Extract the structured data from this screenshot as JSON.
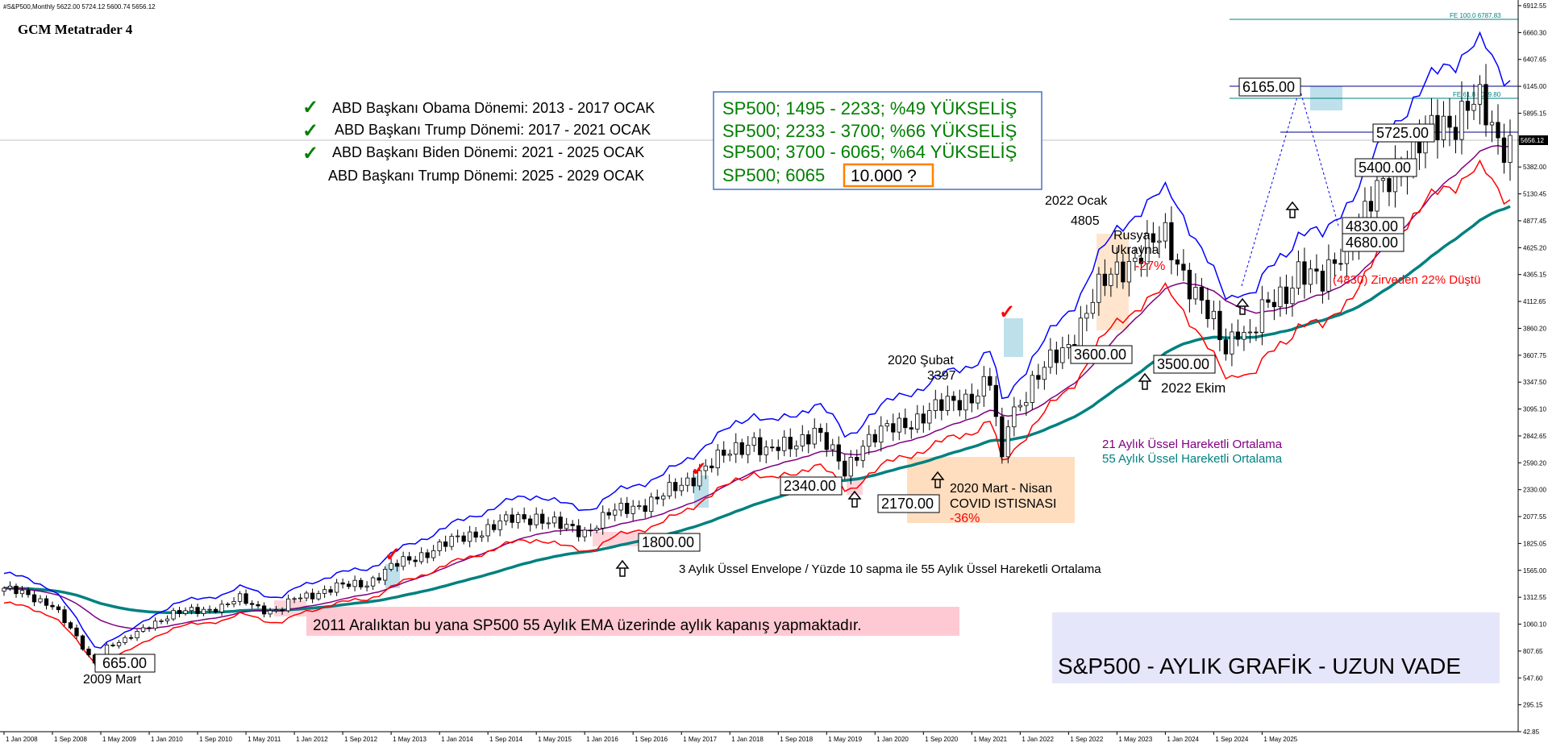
{
  "header": {
    "symbol_line": "#S&P500,Monthly  5622.00 5724.12 5600.74 5656.12",
    "watermark": "GCM Metatrader 4"
  },
  "chart_data": {
    "type": "candlestick",
    "title": "S&P500 - AYLIK GRAFİK - UZUN VADE",
    "timeframe": "Monthly",
    "ylim": [
      42.85,
      6912.55
    ],
    "y_ticks": [
      "6912.55",
      "6660.30",
      "6407.65",
      "6145.00",
      "5895.15",
      "5637.45",
      "5382.00",
      "5130.45",
      "4877.45",
      "4625.20",
      "4365.15",
      "4112.65",
      "3860.20",
      "3607.75",
      "3347.50",
      "3095.10",
      "2842.65",
      "2590.20",
      "2330.00",
      "2077.55",
      "1825.05",
      "1565.00",
      "1312.55",
      "1060.10",
      "807.65",
      "547.60",
      "295.15",
      "42.85"
    ],
    "x_ticks": [
      "1 Jan 2008",
      "1 Sep 2008",
      "1 May 2009",
      "1 Jan 2010",
      "1 Sep 2010",
      "1 May 2011",
      "1 Jan 2012",
      "1 Sep 2012",
      "1 May 2013",
      "1 Jan 2014",
      "1 Sep 2014",
      "1 May 2015",
      "1 Jan 2016",
      "1 Sep 2016",
      "1 May 2017",
      "1 Jan 2018",
      "1 Sep 2018",
      "1 May 2019",
      "1 Jan 2020",
      "1 Sep 2020",
      "1 May 2021",
      "1 Jan 2022",
      "1 Sep 2022",
      "1 May 2023",
      "1 Jan 2024",
      "1 Sep 2024",
      "1 May 2025"
    ],
    "current_price": "5656.12",
    "price_anchors": [
      [
        0,
        1400
      ],
      [
        8,
        1250
      ],
      [
        14,
        760
      ],
      [
        15,
        700
      ],
      [
        17,
        850
      ],
      [
        20,
        900
      ],
      [
        24,
        1060
      ],
      [
        28,
        1150
      ],
      [
        31,
        1190
      ],
      [
        36,
        1220
      ],
      [
        39,
        1300
      ],
      [
        44,
        1180
      ],
      [
        46,
        1200
      ],
      [
        48,
        1300
      ],
      [
        55,
        1410
      ],
      [
        60,
        1450
      ],
      [
        64,
        1600
      ],
      [
        68,
        1690
      ],
      [
        72,
        1800
      ],
      [
        76,
        1880
      ],
      [
        80,
        1970
      ],
      [
        84,
        2050
      ],
      [
        88,
        2080
      ],
      [
        92,
        1980
      ],
      [
        96,
        1940
      ],
      [
        100,
        2100
      ],
      [
        104,
        2170
      ],
      [
        108,
        2250
      ],
      [
        112,
        2370
      ],
      [
        116,
        2560
      ],
      [
        120,
        2670
      ],
      [
        124,
        2820
      ],
      [
        126,
        2680
      ],
      [
        130,
        2750
      ],
      [
        134,
        2910
      ],
      [
        139,
        2500
      ],
      [
        142,
        2790
      ],
      [
        148,
        2940
      ],
      [
        154,
        3090
      ],
      [
        160,
        3230
      ],
      [
        163,
        3350
      ],
      [
        165,
        2580
      ],
      [
        166,
        3000
      ],
      [
        170,
        3350
      ],
      [
        176,
        3700
      ],
      [
        180,
        4150
      ],
      [
        184,
        4400
      ],
      [
        188,
        4600
      ],
      [
        192,
        4700
      ],
      [
        194,
        4500
      ],
      [
        197,
        4200
      ],
      [
        202,
        3650
      ],
      [
        204,
        3900
      ],
      [
        206,
        3790
      ],
      [
        208,
        4000
      ],
      [
        210,
        4100
      ],
      [
        212,
        4200
      ],
      [
        214,
        4450
      ],
      [
        218,
        4250
      ],
      [
        220,
        4500
      ],
      [
        224,
        4850
      ],
      [
        228,
        5200
      ],
      [
        232,
        5500
      ],
      [
        236,
        5700
      ],
      [
        240,
        5850
      ],
      [
        242,
        6020
      ],
      [
        244,
        5950
      ],
      [
        247,
        5600
      ],
      [
        249,
        5656
      ]
    ],
    "annotations": {
      "fe_100": "FE 100.0 6787.83",
      "fe_618": "FE 61.8 6039.80",
      "box_6165": "6165.00",
      "box_5725": "5725.00",
      "box_5400": "5400.00",
      "box_4830": "4830.00",
      "box_4680": "4680.00",
      "box_3600": "3600.00",
      "box_3500": "3500.00",
      "box_2340": "2340.00",
      "box_2170": "2170.00",
      "box_1800": "1800.00",
      "box_665": "665.00",
      "label_2009_mart": "2009 Mart",
      "label_2022_ocak": "2022 Ocak",
      "label_4805": "4805",
      "label_rusya": "Rusya",
      "label_ukrayna": "Ukrayna",
      "label_minus27": "-27%",
      "label_2020_subat": "2020 Şubat",
      "label_3397": "3397",
      "label_2022_ekim": "2022 Ekim",
      "label_covid_1": "2020 Mart - Nisan",
      "label_covid_2": "COVID ISTISNASI",
      "label_minus36": "-36%",
      "label_zirve": "(4830) Zirveden 22% Düştü",
      "legend_21": "21  Aylık Üssel Hareketli Ortalama",
      "legend_55": "55 Aylık Üssel Hareketli Ortalama",
      "envelope_note": "3 Aylık Üssel Envelope / Yüzde 10 sapma ile 55 Aylık Üssel Hareketli Ortalama",
      "ema_note": "2011 Aralıktan bu yana SP500 55 Aylık EMA üzerinde  aylık kapanış yapmaktadır."
    },
    "presidents": [
      {
        "left": "ABD Başkanı Obama Dönemi: 2013 - 2017 OCAK",
        "right": "SP500; 1495 - 2233; %49 YÜKSELİŞ",
        "check": true
      },
      {
        "left": "ABD Başkanı Trump Dönemi: 2017 - 2021 OCAK",
        "right": "SP500; 2233 - 3700; %66 YÜKSELİŞ",
        "check": true
      },
      {
        "left": "ABD Başkanı Biden Dönemi: 2021 - 2025 OCAK",
        "right": "SP500; 3700 - 6065; %64 YÜKSELİŞ",
        "check": true
      },
      {
        "left": "ABD Başkanı Trump Dönemi: 2025 - 2029 OCAK",
        "right": "SP500; 6065",
        "target": "10.000 ?",
        "check": false
      }
    ],
    "colors": {
      "envelope_upper": "#0000ff",
      "envelope_lower": "#ff0000",
      "ema21": "#800080",
      "ema55": "#008080",
      "text_green": "#008000",
      "text_red": "#ff0000",
      "highlight_pink": "#ffc0cb",
      "highlight_peach": "#ffdab9",
      "highlight_blue": "#add8e6"
    }
  }
}
